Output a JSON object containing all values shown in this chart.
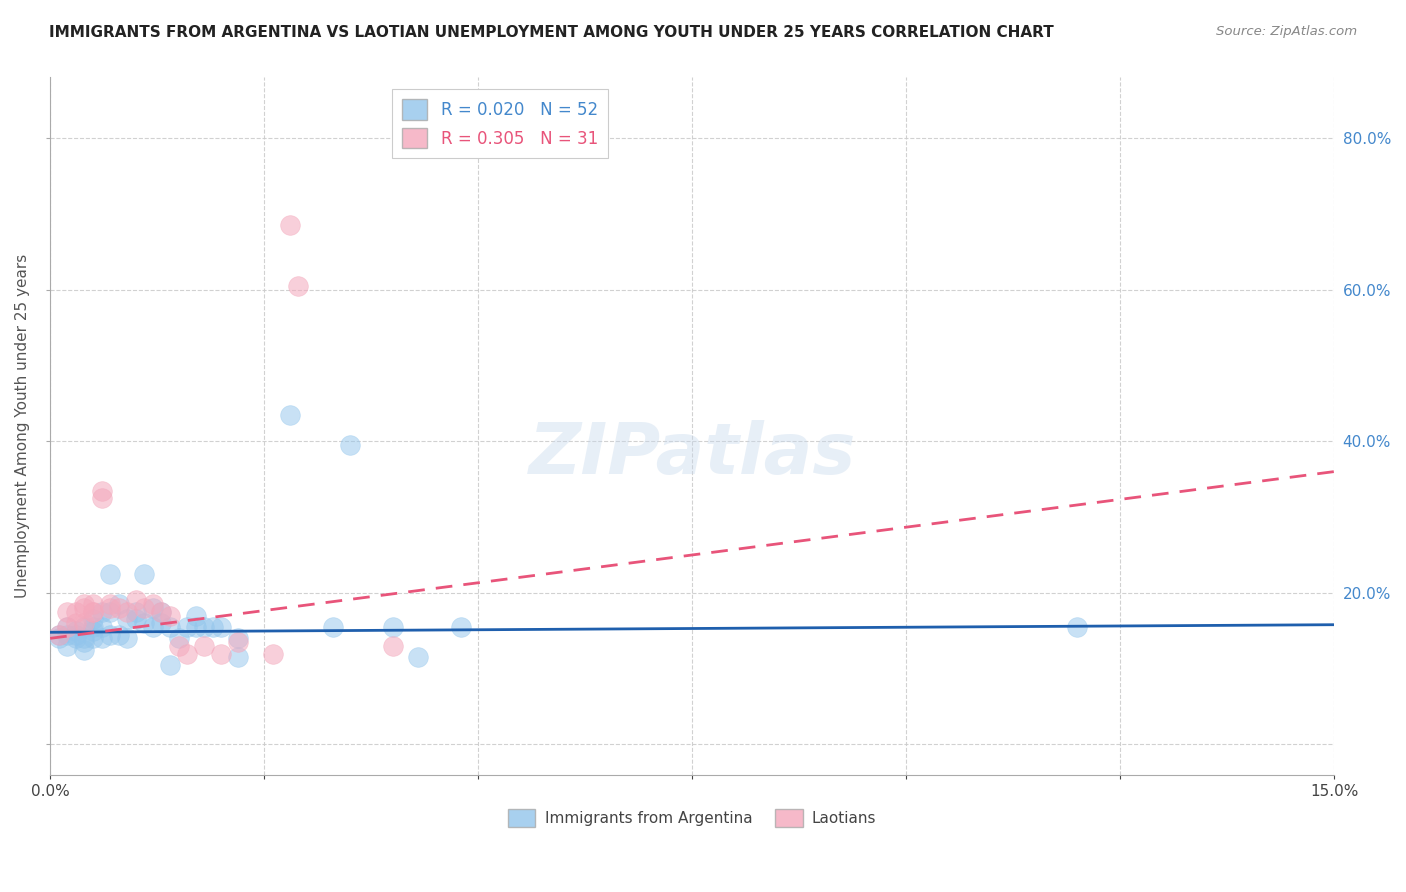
{
  "title": "IMMIGRANTS FROM ARGENTINA VS LAOTIAN UNEMPLOYMENT AMONG YOUTH UNDER 25 YEARS CORRELATION CHART",
  "source": "Source: ZipAtlas.com",
  "ylabel": "Unemployment Among Youth under 25 years",
  "legend_label_blue": "Immigrants from Argentina",
  "legend_label_pink": "Laotians",
  "xlim": [
    0.0,
    0.15
  ],
  "ylim": [
    -0.04,
    0.88
  ],
  "background_color": "#ffffff",
  "grid_color": "#cccccc",
  "blue_color": "#92C5EC",
  "pink_color": "#F4A8BC",
  "blue_line_color": "#1F5FAD",
  "pink_line_color": "#E8547A",
  "blue_scatter": [
    [
      0.001,
      0.145
    ],
    [
      0.001,
      0.14
    ],
    [
      0.002,
      0.145
    ],
    [
      0.002,
      0.13
    ],
    [
      0.002,
      0.155
    ],
    [
      0.003,
      0.14
    ],
    [
      0.003,
      0.145
    ],
    [
      0.003,
      0.15
    ],
    [
      0.004,
      0.135
    ],
    [
      0.004,
      0.14
    ],
    [
      0.004,
      0.155
    ],
    [
      0.004,
      0.125
    ],
    [
      0.005,
      0.14
    ],
    [
      0.005,
      0.155
    ],
    [
      0.005,
      0.165
    ],
    [
      0.005,
      0.15
    ],
    [
      0.006,
      0.14
    ],
    [
      0.006,
      0.175
    ],
    [
      0.006,
      0.155
    ],
    [
      0.007,
      0.145
    ],
    [
      0.007,
      0.225
    ],
    [
      0.007,
      0.175
    ],
    [
      0.008,
      0.145
    ],
    [
      0.008,
      0.185
    ],
    [
      0.009,
      0.14
    ],
    [
      0.009,
      0.165
    ],
    [
      0.01,
      0.175
    ],
    [
      0.01,
      0.165
    ],
    [
      0.011,
      0.225
    ],
    [
      0.011,
      0.16
    ],
    [
      0.012,
      0.18
    ],
    [
      0.012,
      0.155
    ],
    [
      0.013,
      0.175
    ],
    [
      0.013,
      0.16
    ],
    [
      0.014,
      0.155
    ],
    [
      0.014,
      0.105
    ],
    [
      0.015,
      0.14
    ],
    [
      0.016,
      0.155
    ],
    [
      0.017,
      0.17
    ],
    [
      0.017,
      0.155
    ],
    [
      0.018,
      0.155
    ],
    [
      0.019,
      0.155
    ],
    [
      0.02,
      0.155
    ],
    [
      0.022,
      0.14
    ],
    [
      0.022,
      0.115
    ],
    [
      0.028,
      0.435
    ],
    [
      0.033,
      0.155
    ],
    [
      0.035,
      0.395
    ],
    [
      0.04,
      0.155
    ],
    [
      0.043,
      0.115
    ],
    [
      0.048,
      0.155
    ],
    [
      0.12,
      0.155
    ]
  ],
  "pink_scatter": [
    [
      0.001,
      0.145
    ],
    [
      0.002,
      0.155
    ],
    [
      0.002,
      0.175
    ],
    [
      0.003,
      0.16
    ],
    [
      0.003,
      0.175
    ],
    [
      0.004,
      0.18
    ],
    [
      0.004,
      0.185
    ],
    [
      0.004,
      0.16
    ],
    [
      0.005,
      0.175
    ],
    [
      0.005,
      0.185
    ],
    [
      0.005,
      0.175
    ],
    [
      0.006,
      0.335
    ],
    [
      0.006,
      0.325
    ],
    [
      0.007,
      0.18
    ],
    [
      0.007,
      0.185
    ],
    [
      0.008,
      0.18
    ],
    [
      0.009,
      0.175
    ],
    [
      0.01,
      0.19
    ],
    [
      0.011,
      0.18
    ],
    [
      0.012,
      0.185
    ],
    [
      0.013,
      0.175
    ],
    [
      0.014,
      0.17
    ],
    [
      0.015,
      0.13
    ],
    [
      0.016,
      0.12
    ],
    [
      0.018,
      0.13
    ],
    [
      0.02,
      0.12
    ],
    [
      0.022,
      0.135
    ],
    [
      0.026,
      0.12
    ],
    [
      0.028,
      0.685
    ],
    [
      0.029,
      0.605
    ],
    [
      0.04,
      0.13
    ]
  ],
  "blue_trend": [
    0.0,
    0.15,
    0.148,
    0.158
  ],
  "pink_trend": [
    0.0,
    0.15,
    0.14,
    0.36
  ]
}
